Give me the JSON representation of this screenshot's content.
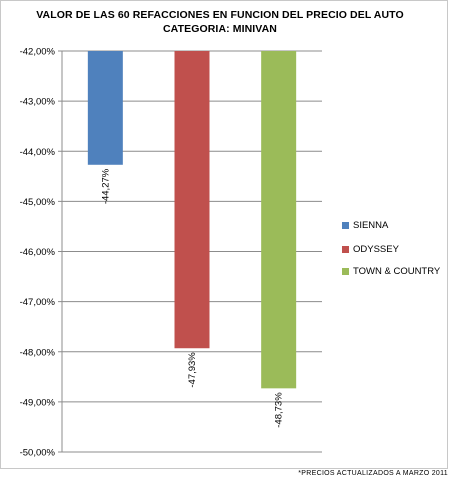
{
  "chart_data": {
    "type": "bar",
    "title_line1": "VALOR DE LAS 60 REFACCIONES EN FUNCION DEL PRECIO DEL AUTO",
    "title_line2": "CATEGORIA: MINIVAN",
    "footnote": "*PRECIOS ACTUALIZADOS A MARZO 2011",
    "ylim": [
      -50,
      -42
    ],
    "y_ticks": [
      "-42,00%",
      "-43,00%",
      "-44,00%",
      "-45,00%",
      "-46,00%",
      "-47,00%",
      "-48,00%",
      "-49,00%",
      "-50,00%"
    ],
    "y_tick_values": [
      -42,
      -43,
      -44,
      -45,
      -46,
      -47,
      -48,
      -49,
      -50
    ],
    "grid": true,
    "legend_position": "right",
    "series": [
      {
        "name": "SIENNA",
        "value": -44.27,
        "label": "-44,27%",
        "color": "#4f81bd"
      },
      {
        "name": "ODYSSEY",
        "value": -47.93,
        "label": "-47,93%",
        "color": "#c0504d"
      },
      {
        "name": "TOWN & COUNTRY",
        "value": -48.73,
        "label": "-48,73%",
        "color": "#9bbb59"
      }
    ]
  }
}
